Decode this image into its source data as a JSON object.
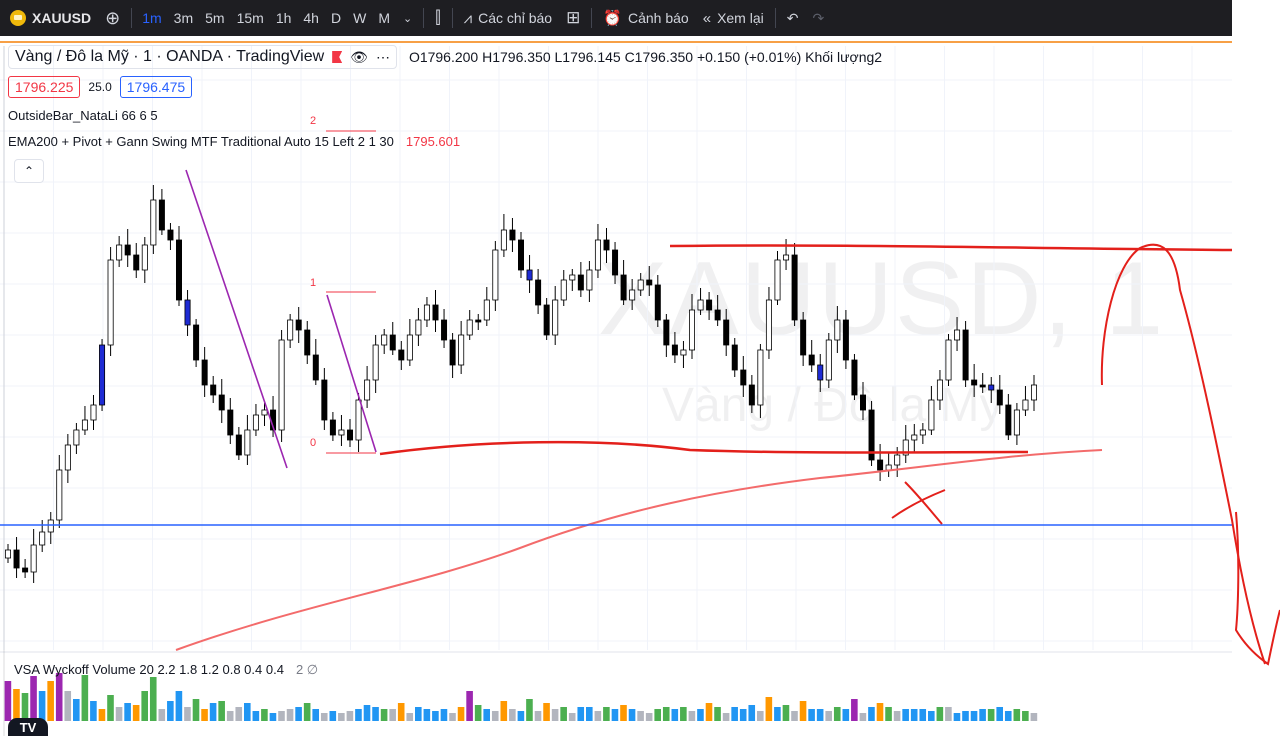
{
  "toolbar": {
    "symbol": "XAUUSD",
    "timeframes": [
      "1m",
      "3m",
      "5m",
      "15m",
      "1h",
      "4h",
      "D",
      "W",
      "M"
    ],
    "active_timeframe": "1m",
    "indicators_label": "Các chỉ báo",
    "alerts_label": "Cảnh báo",
    "replay_label": "Xem lại"
  },
  "legend": {
    "title": "Vàng / Đô la Mỹ · 1 · OANDA · TradingView",
    "ohlc": "O1796.200  H1796.350  L1796.145  C1796.350  +0.150 (+0.01%)  Khối lượng2",
    "sell_price": "1796.225",
    "spread": "25.0",
    "buy_price": "1796.475",
    "indicator1": "OutsideBar_NataLi 66 6 5",
    "indicator2": "EMA200 + Pivot + Gann Swing MTF Traditional Auto 15 Left 2 1 30",
    "indicator2_value": "1795.601",
    "indicator2_value_color": "#f23645"
  },
  "chart": {
    "watermark_symbol": "XAUUSD, 1",
    "watermark_name": "Vàng / Đô la Mỹ",
    "pivot_labels": [
      "2",
      "1",
      "0"
    ],
    "up_candle_color": "#ffffff",
    "down_candle_color": "#000000",
    "outside_bar_color": "#1e2bd4",
    "drawing_color": "#e3201b",
    "ema_color": "#f36b6b",
    "swing_line_color": "#9c27b0",
    "horizontal_line_color": "#2962ff"
  },
  "volume": {
    "label": "VSA Wyckoff Volume 20 2.2 1.8 1.2 0.8 0.4 0.4",
    "extra": "2 ∅",
    "bar_colors": {
      "blue": "#2196f3",
      "green": "#4caf50",
      "orange": "#ff9800",
      "purple": "#9c27b0",
      "gray": "#b2b5be"
    }
  },
  "logo_text": "TV"
}
